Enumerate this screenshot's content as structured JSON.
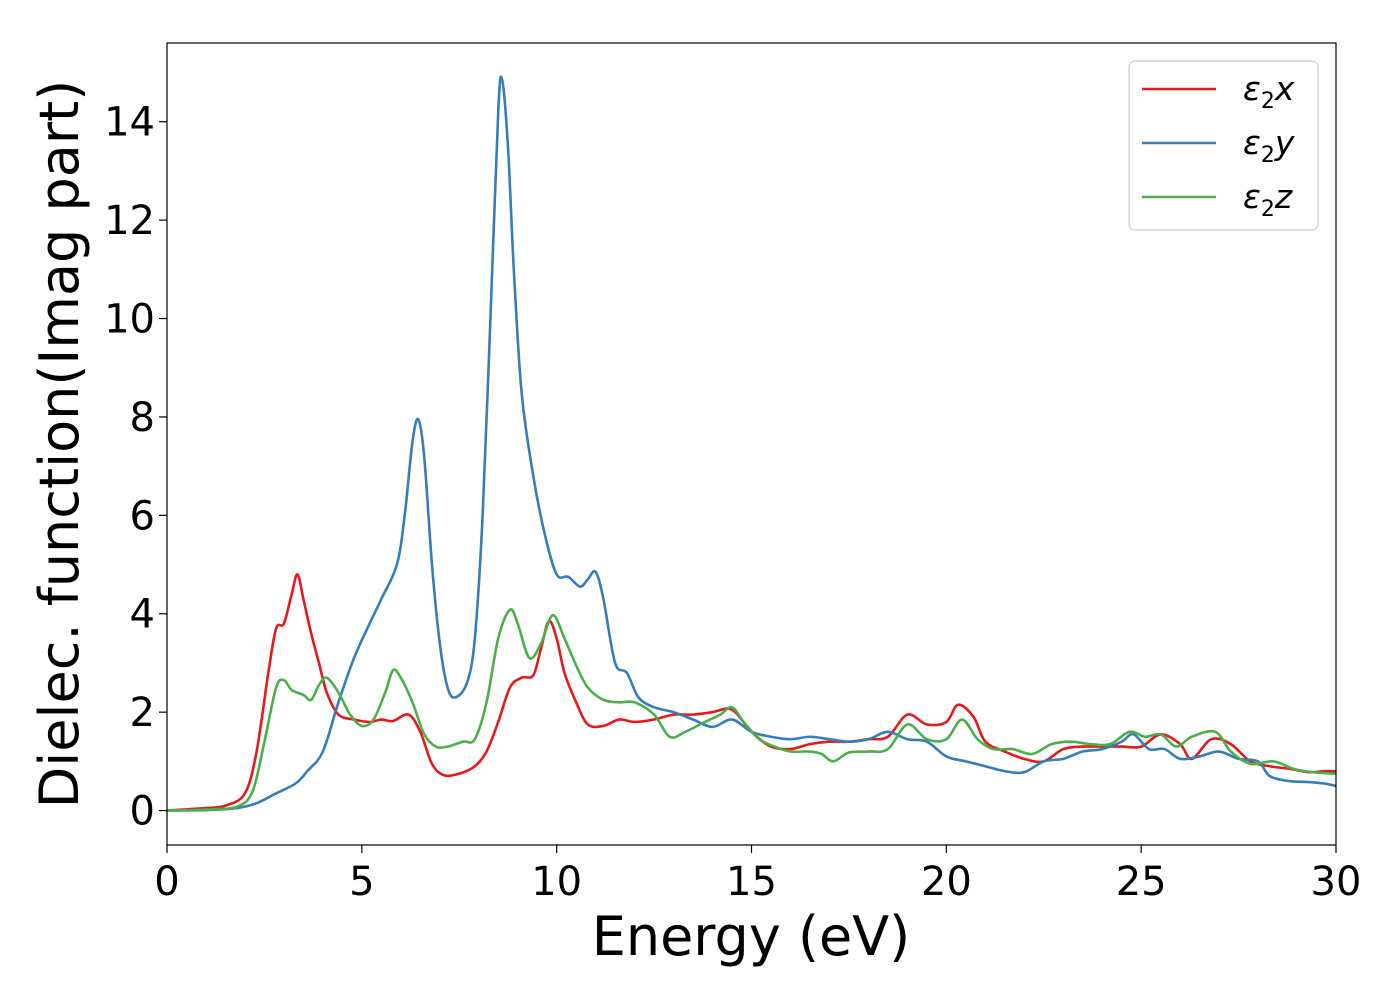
{
  "chart_data": {
    "type": "line",
    "xlabel": "Energy (eV)",
    "ylabel": "Dielec. function(Imag part)",
    "xlim": [
      0,
      30
    ],
    "ylim": [
      -0.7,
      15.6
    ],
    "xticks": [
      "0",
      "5",
      "10",
      "15",
      "20",
      "25",
      "30"
    ],
    "yticks": [
      "0",
      "2",
      "4",
      "6",
      "8",
      "10",
      "12",
      "14"
    ],
    "grid": false,
    "legend_position": "top-right",
    "series": [
      {
        "name": "ε₂x",
        "legend": {
          "base": "ε",
          "sub": "2",
          "suffix": "x"
        },
        "color": "#e41a1c",
        "points": [
          [
            0,
            0
          ],
          [
            1,
            0.05
          ],
          [
            1.5,
            0.1
          ],
          [
            2,
            0.35
          ],
          [
            2.3,
            1.2
          ],
          [
            2.6,
            2.8
          ],
          [
            2.8,
            3.7
          ],
          [
            3.0,
            3.8
          ],
          [
            3.2,
            4.4
          ],
          [
            3.35,
            4.8
          ],
          [
            3.5,
            4.3
          ],
          [
            3.7,
            3.6
          ],
          [
            3.9,
            3.0
          ],
          [
            4.1,
            2.4
          ],
          [
            4.4,
            1.95
          ],
          [
            4.8,
            1.85
          ],
          [
            5.2,
            1.8
          ],
          [
            5.5,
            1.85
          ],
          [
            5.8,
            1.82
          ],
          [
            6.2,
            1.95
          ],
          [
            6.5,
            1.6
          ],
          [
            6.8,
            0.95
          ],
          [
            7.1,
            0.72
          ],
          [
            7.5,
            0.75
          ],
          [
            7.9,
            0.9
          ],
          [
            8.2,
            1.2
          ],
          [
            8.5,
            1.8
          ],
          [
            8.8,
            2.5
          ],
          [
            9.1,
            2.7
          ],
          [
            9.4,
            2.75
          ],
          [
            9.6,
            3.3
          ],
          [
            9.8,
            3.85
          ],
          [
            10.0,
            3.5
          ],
          [
            10.2,
            2.8
          ],
          [
            10.5,
            2.2
          ],
          [
            10.8,
            1.75
          ],
          [
            11.2,
            1.72
          ],
          [
            11.6,
            1.85
          ],
          [
            12.0,
            1.8
          ],
          [
            12.5,
            1.85
          ],
          [
            13.0,
            1.95
          ],
          [
            13.5,
            1.95
          ],
          [
            14.0,
            2.0
          ],
          [
            14.5,
            2.05
          ],
          [
            15.0,
            1.6
          ],
          [
            15.5,
            1.3
          ],
          [
            16.0,
            1.25
          ],
          [
            16.5,
            1.35
          ],
          [
            17.0,
            1.4
          ],
          [
            17.5,
            1.4
          ],
          [
            18.0,
            1.45
          ],
          [
            18.5,
            1.5
          ],
          [
            19.0,
            1.95
          ],
          [
            19.5,
            1.75
          ],
          [
            20.0,
            1.8
          ],
          [
            20.3,
            2.15
          ],
          [
            20.7,
            1.9
          ],
          [
            21.0,
            1.4
          ],
          [
            21.5,
            1.2
          ],
          [
            22.0,
            1.05
          ],
          [
            22.5,
            1.0
          ],
          [
            23.0,
            1.25
          ],
          [
            23.5,
            1.3
          ],
          [
            24.0,
            1.3
          ],
          [
            24.5,
            1.3
          ],
          [
            25.0,
            1.3
          ],
          [
            25.5,
            1.55
          ],
          [
            26.0,
            1.35
          ],
          [
            26.3,
            1.05
          ],
          [
            26.8,
            1.45
          ],
          [
            27.3,
            1.35
          ],
          [
            27.8,
            1.0
          ],
          [
            28.3,
            0.9
          ],
          [
            28.8,
            0.85
          ],
          [
            29.3,
            0.78
          ],
          [
            29.7,
            0.8
          ],
          [
            30.0,
            0.8
          ]
        ]
      },
      {
        "name": "ε₂y",
        "legend": {
          "base": "ε",
          "sub": "2",
          "suffix": "y"
        },
        "color": "#377eb8",
        "points": [
          [
            0,
            0
          ],
          [
            1,
            0.01
          ],
          [
            1.8,
            0.05
          ],
          [
            2.3,
            0.15
          ],
          [
            2.8,
            0.35
          ],
          [
            3.3,
            0.55
          ],
          [
            3.6,
            0.8
          ],
          [
            4.0,
            1.2
          ],
          [
            4.4,
            2.2
          ],
          [
            4.8,
            3.1
          ],
          [
            5.2,
            3.8
          ],
          [
            5.5,
            4.3
          ],
          [
            5.9,
            5.0
          ],
          [
            6.1,
            6.0
          ],
          [
            6.3,
            7.5
          ],
          [
            6.45,
            7.95
          ],
          [
            6.6,
            7.2
          ],
          [
            6.8,
            5.0
          ],
          [
            7.0,
            3.4
          ],
          [
            7.2,
            2.5
          ],
          [
            7.4,
            2.3
          ],
          [
            7.7,
            2.6
          ],
          [
            7.9,
            3.5
          ],
          [
            8.1,
            6.0
          ],
          [
            8.3,
            10.0
          ],
          [
            8.5,
            14.2
          ],
          [
            8.6,
            14.85
          ],
          [
            8.75,
            13.5
          ],
          [
            8.9,
            11.0
          ],
          [
            9.1,
            8.5
          ],
          [
            9.4,
            6.8
          ],
          [
            9.7,
            5.6
          ],
          [
            10.0,
            4.8
          ],
          [
            10.3,
            4.75
          ],
          [
            10.6,
            4.55
          ],
          [
            10.8,
            4.7
          ],
          [
            11.0,
            4.85
          ],
          [
            11.2,
            4.3
          ],
          [
            11.5,
            3.0
          ],
          [
            11.8,
            2.8
          ],
          [
            12.1,
            2.3
          ],
          [
            12.5,
            2.1
          ],
          [
            13.0,
            2.0
          ],
          [
            13.5,
            1.85
          ],
          [
            14.0,
            1.7
          ],
          [
            14.5,
            1.85
          ],
          [
            15.0,
            1.6
          ],
          [
            15.5,
            1.5
          ],
          [
            16.0,
            1.45
          ],
          [
            16.5,
            1.5
          ],
          [
            17.0,
            1.45
          ],
          [
            17.5,
            1.4
          ],
          [
            18.0,
            1.45
          ],
          [
            18.5,
            1.6
          ],
          [
            19.0,
            1.45
          ],
          [
            19.5,
            1.4
          ],
          [
            20.0,
            1.1
          ],
          [
            20.5,
            1.0
          ],
          [
            21.0,
            0.9
          ],
          [
            21.5,
            0.8
          ],
          [
            22.0,
            0.78
          ],
          [
            22.5,
            1.0
          ],
          [
            23.0,
            1.05
          ],
          [
            23.5,
            1.2
          ],
          [
            24.0,
            1.25
          ],
          [
            24.5,
            1.4
          ],
          [
            24.8,
            1.55
          ],
          [
            25.2,
            1.25
          ],
          [
            25.6,
            1.25
          ],
          [
            26.0,
            1.05
          ],
          [
            26.5,
            1.1
          ],
          [
            27.0,
            1.2
          ],
          [
            27.5,
            1.05
          ],
          [
            28.0,
            1.0
          ],
          [
            28.3,
            0.7
          ],
          [
            28.8,
            0.6
          ],
          [
            29.3,
            0.58
          ],
          [
            29.7,
            0.55
          ],
          [
            30.0,
            0.5
          ]
        ]
      },
      {
        "name": "ε₂z",
        "legend": {
          "base": "ε",
          "sub": "2",
          "suffix": "z"
        },
        "color": "#4daf4a",
        "points": [
          [
            0,
            0
          ],
          [
            1,
            0.02
          ],
          [
            1.8,
            0.08
          ],
          [
            2.2,
            0.4
          ],
          [
            2.5,
            1.4
          ],
          [
            2.8,
            2.5
          ],
          [
            3.0,
            2.65
          ],
          [
            3.2,
            2.45
          ],
          [
            3.5,
            2.35
          ],
          [
            3.7,
            2.25
          ],
          [
            3.9,
            2.55
          ],
          [
            4.1,
            2.7
          ],
          [
            4.4,
            2.4
          ],
          [
            4.7,
            1.95
          ],
          [
            5.0,
            1.72
          ],
          [
            5.3,
            1.85
          ],
          [
            5.6,
            2.4
          ],
          [
            5.8,
            2.85
          ],
          [
            6.0,
            2.7
          ],
          [
            6.3,
            2.2
          ],
          [
            6.6,
            1.55
          ],
          [
            6.9,
            1.3
          ],
          [
            7.2,
            1.3
          ],
          [
            7.6,
            1.4
          ],
          [
            7.9,
            1.45
          ],
          [
            8.2,
            2.2
          ],
          [
            8.5,
            3.5
          ],
          [
            8.8,
            4.08
          ],
          [
            9.0,
            3.8
          ],
          [
            9.3,
            3.1
          ],
          [
            9.6,
            3.4
          ],
          [
            9.9,
            3.97
          ],
          [
            10.2,
            3.5
          ],
          [
            10.5,
            2.95
          ],
          [
            10.8,
            2.5
          ],
          [
            11.2,
            2.25
          ],
          [
            11.6,
            2.2
          ],
          [
            12.0,
            2.2
          ],
          [
            12.5,
            1.95
          ],
          [
            12.9,
            1.5
          ],
          [
            13.3,
            1.6
          ],
          [
            13.8,
            1.8
          ],
          [
            14.2,
            1.95
          ],
          [
            14.5,
            2.1
          ],
          [
            14.8,
            1.8
          ],
          [
            15.2,
            1.45
          ],
          [
            15.6,
            1.3
          ],
          [
            16.0,
            1.2
          ],
          [
            16.5,
            1.2
          ],
          [
            16.8,
            1.15
          ],
          [
            17.1,
            1.0
          ],
          [
            17.5,
            1.18
          ],
          [
            18.0,
            1.2
          ],
          [
            18.5,
            1.25
          ],
          [
            19.0,
            1.75
          ],
          [
            19.5,
            1.45
          ],
          [
            20.0,
            1.45
          ],
          [
            20.4,
            1.85
          ],
          [
            20.8,
            1.45
          ],
          [
            21.2,
            1.25
          ],
          [
            21.7,
            1.25
          ],
          [
            22.2,
            1.15
          ],
          [
            22.7,
            1.35
          ],
          [
            23.2,
            1.4
          ],
          [
            23.7,
            1.35
          ],
          [
            24.2,
            1.35
          ],
          [
            24.7,
            1.6
          ],
          [
            25.1,
            1.5
          ],
          [
            25.5,
            1.55
          ],
          [
            25.9,
            1.3
          ],
          [
            26.3,
            1.5
          ],
          [
            26.9,
            1.6
          ],
          [
            27.3,
            1.2
          ],
          [
            27.8,
            0.95
          ],
          [
            28.4,
            1.0
          ],
          [
            28.9,
            0.85
          ],
          [
            29.4,
            0.78
          ],
          [
            30.0,
            0.75
          ]
        ]
      }
    ]
  }
}
